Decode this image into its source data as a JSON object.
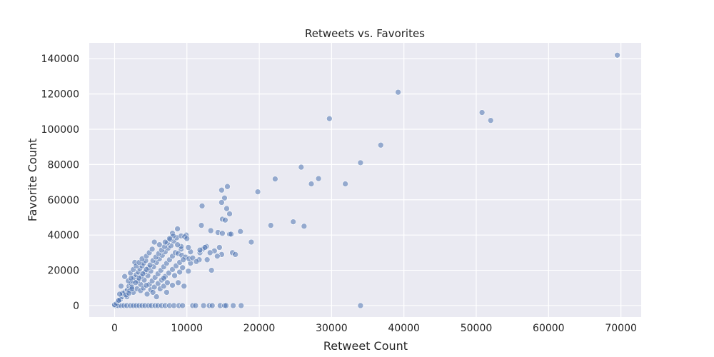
{
  "chart_data": {
    "type": "scatter",
    "title": "Retweets vs. Favorites",
    "xlabel": "Retweet Count",
    "ylabel": "Favorite Count",
    "xlim": [
      -3500,
      72800
    ],
    "ylim": [
      -6500,
      149000
    ],
    "xticks": [
      0,
      10000,
      20000,
      30000,
      40000,
      50000,
      60000,
      70000
    ],
    "yticks": [
      0,
      20000,
      40000,
      60000,
      80000,
      100000,
      120000,
      140000
    ],
    "grid": true,
    "background_color": "#eaeaf2",
    "marker_color": "#4c72b0",
    "points": [
      [
        69500,
        142000
      ],
      [
        39200,
        121000
      ],
      [
        29700,
        106000
      ],
      [
        50800,
        109500
      ],
      [
        52000,
        105000
      ],
      [
        36800,
        91000
      ],
      [
        34000,
        81000
      ],
      [
        25800,
        78500
      ],
      [
        28200,
        72000
      ],
      [
        22200,
        71800
      ],
      [
        27200,
        69000
      ],
      [
        31900,
        69000
      ],
      [
        15600,
        67500
      ],
      [
        14800,
        65500
      ],
      [
        19800,
        64500
      ],
      [
        15200,
        61000
      ],
      [
        14800,
        58500
      ],
      [
        12100,
        56500
      ],
      [
        15500,
        55000
      ],
      [
        15900,
        52000
      ],
      [
        14900,
        49000
      ],
      [
        15300,
        48500
      ],
      [
        24700,
        47500
      ],
      [
        21600,
        45500
      ],
      [
        26200,
        45000
      ],
      [
        12000,
        45500
      ],
      [
        13300,
        42500
      ],
      [
        14300,
        41500
      ],
      [
        14900,
        41000
      ],
      [
        15900,
        40500
      ],
      [
        16100,
        40500
      ],
      [
        17400,
        42000
      ],
      [
        18900,
        36000
      ],
      [
        16300,
        30000
      ],
      [
        16700,
        29000
      ],
      [
        14500,
        33000
      ],
      [
        14800,
        29000
      ],
      [
        14200,
        28000
      ],
      [
        13400,
        20000
      ],
      [
        12700,
        33500
      ],
      [
        12200,
        32000
      ],
      [
        13800,
        31000
      ],
      [
        11800,
        30000
      ],
      [
        12800,
        26000
      ],
      [
        11700,
        26000
      ],
      [
        10500,
        24000
      ],
      [
        10200,
        19500
      ],
      [
        9900,
        40000
      ],
      [
        9200,
        32000
      ],
      [
        9600,
        11000
      ],
      [
        8700,
        43500
      ],
      [
        8000,
        41000
      ],
      [
        5500,
        36000
      ],
      [
        34000,
        0
      ],
      [
        0,
        0
      ],
      [
        200,
        0
      ],
      [
        500,
        0
      ],
      [
        900,
        0
      ],
      [
        1300,
        0
      ],
      [
        1700,
        0
      ],
      [
        2200,
        0
      ],
      [
        2600,
        0
      ],
      [
        3000,
        0
      ],
      [
        3400,
        0
      ],
      [
        3800,
        0
      ],
      [
        4200,
        0
      ],
      [
        4700,
        0
      ],
      [
        5100,
        0
      ],
      [
        5600,
        0
      ],
      [
        6000,
        0
      ],
      [
        6500,
        0
      ],
      [
        7000,
        0
      ],
      [
        7600,
        0
      ],
      [
        8200,
        0
      ],
      [
        8900,
        0
      ],
      [
        9400,
        0
      ],
      [
        10800,
        0
      ],
      [
        11200,
        0
      ],
      [
        12300,
        0
      ],
      [
        13100,
        0
      ],
      [
        13500,
        0
      ],
      [
        14600,
        0
      ],
      [
        15200,
        0
      ],
      [
        15400,
        0
      ],
      [
        16400,
        0
      ],
      [
        17500,
        0
      ],
      [
        0,
        500
      ],
      [
        300,
        1200
      ],
      [
        500,
        2500
      ],
      [
        800,
        3500
      ],
      [
        1000,
        5000
      ],
      [
        1200,
        6500
      ],
      [
        1500,
        8000
      ],
      [
        1800,
        9000
      ],
      [
        2000,
        11000
      ],
      [
        2300,
        12500
      ],
      [
        2500,
        14000
      ],
      [
        2700,
        16000
      ],
      [
        3000,
        17500
      ],
      [
        3300,
        19000
      ],
      [
        3500,
        21000
      ],
      [
        3800,
        22500
      ],
      [
        4000,
        24000
      ],
      [
        4300,
        25500
      ],
      [
        1400,
        16500
      ],
      [
        2800,
        24500
      ],
      [
        900,
        11000
      ],
      [
        1100,
        7000
      ],
      [
        1700,
        5000
      ],
      [
        2100,
        8500
      ],
      [
        2600,
        7500
      ],
      [
        3100,
        9500
      ],
      [
        3600,
        12000
      ],
      [
        4100,
        14500
      ],
      [
        4600,
        17000
      ],
      [
        5000,
        19500
      ],
      [
        5400,
        22000
      ],
      [
        5800,
        24500
      ],
      [
        6200,
        26500
      ],
      [
        6600,
        28500
      ],
      [
        7000,
        30500
      ],
      [
        7400,
        32500
      ],
      [
        7800,
        34000
      ],
      [
        8200,
        36500
      ],
      [
        8600,
        38500
      ],
      [
        9200,
        39500
      ],
      [
        9700,
        39000
      ],
      [
        10000,
        38000
      ],
      [
        4800,
        12000
      ],
      [
        5200,
        14000
      ],
      [
        5600,
        16000
      ],
      [
        6000,
        18000
      ],
      [
        6400,
        20000
      ],
      [
        6800,
        22000
      ],
      [
        7200,
        24000
      ],
      [
        7600,
        26000
      ],
      [
        8000,
        28000
      ],
      [
        8400,
        30000
      ],
      [
        8800,
        29500
      ],
      [
        9300,
        28500
      ],
      [
        9800,
        27500
      ],
      [
        10300,
        26500
      ],
      [
        10800,
        27000
      ],
      [
        11300,
        25000
      ],
      [
        3200,
        14000
      ],
      [
        3700,
        16500
      ],
      [
        4200,
        19000
      ],
      [
        4700,
        21500
      ],
      [
        2400,
        10500
      ],
      [
        2900,
        13000
      ],
      [
        3400,
        15500
      ],
      [
        3900,
        18000
      ],
      [
        4400,
        20500
      ],
      [
        4900,
        23000
      ],
      [
        5300,
        25500
      ],
      [
        5700,
        27500
      ],
      [
        6100,
        29500
      ],
      [
        6500,
        31500
      ],
      [
        6900,
        33500
      ],
      [
        7300,
        35500
      ],
      [
        7700,
        37500
      ],
      [
        8100,
        39500
      ],
      [
        1600,
        6000
      ],
      [
        2000,
        7000
      ],
      [
        2400,
        9500
      ],
      [
        3600,
        8500
      ],
      [
        4000,
        10000
      ],
      [
        4400,
        11500
      ],
      [
        5000,
        9000
      ],
      [
        5500,
        10500
      ],
      [
        6000,
        12500
      ],
      [
        6500,
        14500
      ],
      [
        7000,
        16500
      ],
      [
        7500,
        18500
      ],
      [
        8000,
        20500
      ],
      [
        8500,
        22500
      ],
      [
        9000,
        24500
      ],
      [
        9500,
        26000
      ],
      [
        5800,
        5000
      ],
      [
        7200,
        7500
      ],
      [
        8000,
        11500
      ],
      [
        8800,
        13000
      ],
      [
        6800,
        15500
      ],
      [
        2200,
        18500
      ],
      [
        2600,
        20500
      ],
      [
        3000,
        22500
      ],
      [
        3400,
        24500
      ],
      [
        3800,
        26500
      ],
      [
        4400,
        28000
      ],
      [
        4800,
        30000
      ],
      [
        5200,
        32000
      ],
      [
        6200,
        34500
      ],
      [
        7000,
        36000
      ],
      [
        7600,
        38000
      ],
      [
        600,
        3000
      ],
      [
        700,
        6500
      ],
      [
        1900,
        14000
      ],
      [
        2300,
        15500
      ],
      [
        4500,
        6500
      ],
      [
        5300,
        7500
      ],
      [
        6300,
        9500
      ],
      [
        6800,
        11000
      ],
      [
        7300,
        13000
      ],
      [
        9000,
        19000
      ],
      [
        9400,
        21500
      ],
      [
        8300,
        17000
      ],
      [
        10500,
        30500
      ],
      [
        11800,
        31500
      ],
      [
        12500,
        33000
      ],
      [
        13200,
        30000
      ],
      [
        9200,
        33500
      ],
      [
        8700,
        34500
      ],
      [
        10200,
        33000
      ]
    ]
  }
}
